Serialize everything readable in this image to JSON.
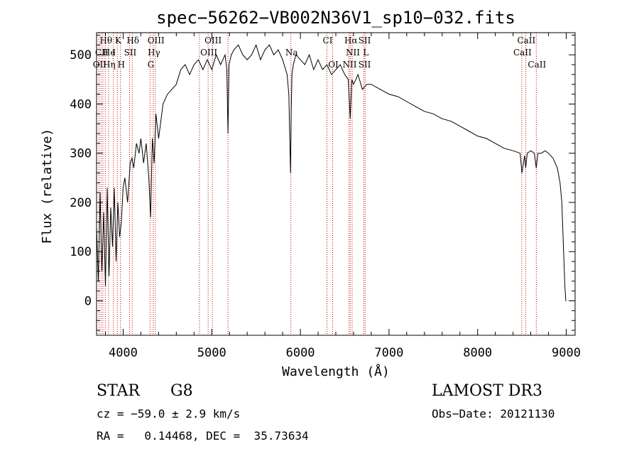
{
  "chart_data": {
    "type": "line",
    "title": "spec−56262−VB002N36V1_sp10−032.fits",
    "xlabel": "Wavelength (Å)",
    "ylabel": "Flux (relative)",
    "xlim": [
      3700,
      9100
    ],
    "ylim": [
      -70,
      545
    ],
    "xticks": [
      4000,
      5000,
      6000,
      7000,
      8000,
      9000
    ],
    "yticks": [
      0,
      100,
      200,
      300,
      400,
      500
    ],
    "xtick_labels": [
      "4000",
      "5000",
      "6000",
      "7000",
      "8000",
      "9000"
    ],
    "ytick_labels": [
      "0",
      "100",
      "200",
      "300",
      "400",
      "500"
    ],
    "series": [
      {
        "name": "flux",
        "color": "#000000",
        "x": [
          3700,
          3720,
          3740,
          3760,
          3780,
          3800,
          3820,
          3840,
          3860,
          3880,
          3900,
          3920,
          3940,
          3960,
          3980,
          4000,
          4020,
          4050,
          4080,
          4100,
          4120,
          4150,
          4180,
          4200,
          4230,
          4260,
          4290,
          4310,
          4330,
          4350,
          4370,
          4400,
          4450,
          4500,
          4550,
          4600,
          4650,
          4700,
          4750,
          4800,
          4850,
          4900,
          4950,
          5000,
          5050,
          5100,
          5150,
          5170,
          5183,
          5195,
          5220,
          5250,
          5300,
          5350,
          5400,
          5450,
          5500,
          5550,
          5600,
          5650,
          5700,
          5750,
          5800,
          5850,
          5870,
          5880,
          5889,
          5896,
          5905,
          5920,
          5950,
          6000,
          6050,
          6100,
          6150,
          6200,
          6250,
          6300,
          6350,
          6400,
          6450,
          6500,
          6540,
          6563,
          6580,
          6600,
          6650,
          6700,
          6750,
          6800,
          6900,
          7000,
          7100,
          7200,
          7300,
          7400,
          7500,
          7600,
          7700,
          7800,
          7900,
          8000,
          8100,
          8200,
          8300,
          8400,
          8480,
          8500,
          8530,
          8542,
          8560,
          8600,
          8640,
          8662,
          8680,
          8720,
          8760,
          8800,
          8850,
          8900,
          8930,
          8950,
          8970,
          8985,
          8995,
          9000
        ],
        "values": [
          150,
          40,
          220,
          60,
          180,
          30,
          230,
          50,
          190,
          110,
          230,
          80,
          200,
          130,
          160,
          230,
          250,
          200,
          280,
          290,
          270,
          320,
          300,
          330,
          280,
          320,
          250,
          170,
          330,
          280,
          380,
          330,
          400,
          420,
          430,
          440,
          470,
          480,
          460,
          480,
          490,
          470,
          490,
          470,
          500,
          480,
          500,
          470,
          340,
          480,
          500,
          510,
          520,
          500,
          490,
          500,
          520,
          490,
          510,
          520,
          500,
          510,
          490,
          460,
          420,
          330,
          260,
          380,
          460,
          480,
          500,
          490,
          480,
          500,
          470,
          490,
          470,
          480,
          460,
          470,
          480,
          460,
          450,
          370,
          450,
          440,
          460,
          430,
          440,
          440,
          430,
          420,
          415,
          405,
          395,
          385,
          380,
          370,
          365,
          355,
          345,
          335,
          330,
          320,
          310,
          305,
          300,
          260,
          295,
          270,
          300,
          305,
          300,
          270,
          300,
          300,
          305,
          300,
          290,
          270,
          240,
          200,
          100,
          30,
          0,
          0
        ],
        "note": "traced approximation of plotted spectrum"
      }
    ],
    "line_markers": {
      "color": "#cc0000",
      "style": "dotted",
      "wavelengths": [
        3727,
        3750,
        3771,
        3798,
        3835,
        3889,
        3934,
        3970,
        4072,
        4102,
        4304,
        4340,
        4363,
        4861,
        4959,
        5007,
        5183,
        5893,
        6300,
        6364,
        6548,
        6563,
        6584,
        6717,
        6731,
        8498,
        8542,
        8662
      ]
    },
    "line_labels": [
      {
        "text": "Hθ",
        "wl": 3798,
        "row": 1
      },
      {
        "text": "K",
        "wl": 3934,
        "row": 1
      },
      {
        "text": "Hδ",
        "wl": 4102,
        "row": 1
      },
      {
        "text": "OIII",
        "wl": 4363,
        "row": 1
      },
      {
        "text": "OIII",
        "wl": 5007,
        "row": 1
      },
      {
        "text": "CI",
        "wl": 6300,
        "row": 1
      },
      {
        "text": "Hα",
        "wl": 6563,
        "row": 1
      },
      {
        "text": "SII",
        "wl": 6717,
        "row": 1
      },
      {
        "text": "CaII",
        "wl": 8542,
        "row": 1
      },
      {
        "text": "CII",
        "wl": 3750,
        "row": 2
      },
      {
        "text": "He",
        "wl": 3834,
        "row": 2
      },
      {
        "text": "I",
        "wl": 3889,
        "row": 2
      },
      {
        "text": "SII",
        "wl": 4072,
        "row": 2
      },
      {
        "text": "Hγ",
        "wl": 4340,
        "row": 2
      },
      {
        "text": "OIII",
        "wl": 4959,
        "row": 2
      },
      {
        "text": "Na",
        "wl": 5893,
        "row": 2
      },
      {
        "text": "NII",
        "wl": 6584,
        "row": 2
      },
      {
        "text": "L",
        "wl": 6731,
        "row": 2
      },
      {
        "text": "CaII",
        "wl": 8498,
        "row": 2
      },
      {
        "text": "OII",
        "wl": 3727,
        "row": 3
      },
      {
        "text": "Hη",
        "wl": 3835,
        "row": 3
      },
      {
        "text": "H",
        "wl": 3970,
        "row": 3
      },
      {
        "text": "G",
        "wl": 4304,
        "row": 3
      },
      {
        "text": "OI",
        "wl": 6364,
        "row": 3
      },
      {
        "text": "NII",
        "wl": 6548,
        "row": 3
      },
      {
        "text": "SII",
        "wl": 6717,
        "row": 3
      },
      {
        "text": "CaII",
        "wl": 8662,
        "row": 3
      }
    ]
  },
  "footer": {
    "object_class": "STAR",
    "subclass": "G8",
    "cz": "cz = −59.0 ± 2.9 km/s",
    "radec": "RA =   0.14468, DEC =  35.73634",
    "survey": "LAMOST DR3",
    "obs_date": "Obs−Date: 20121130"
  }
}
